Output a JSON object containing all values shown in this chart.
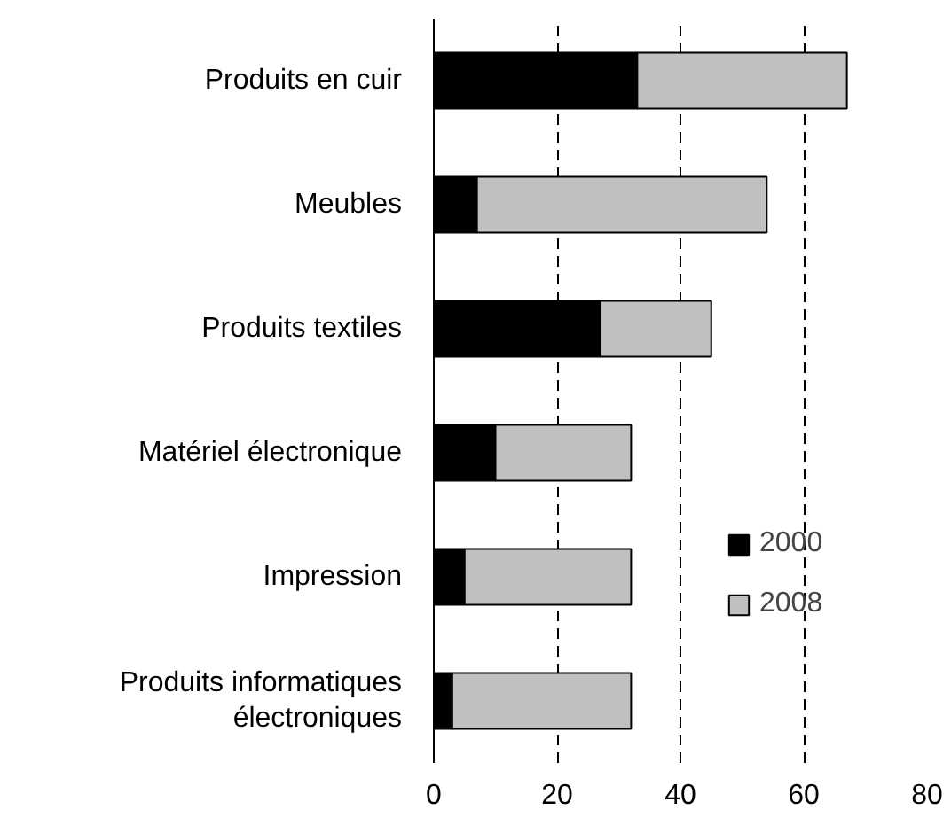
{
  "chart_data": {
    "type": "bar",
    "orientation": "horizontal",
    "stacked": true,
    "categories": [
      "Produits en cuir",
      "Meubles",
      "Produits textiles",
      "Matériel électronique",
      "Impression",
      "Produits informatiques électroniques"
    ],
    "series": [
      {
        "name": "2000",
        "color": "#000000",
        "values": [
          33,
          7,
          27,
          10,
          5,
          3
        ]
      },
      {
        "name": "2008",
        "color": "#c0c0c0",
        "values": [
          34,
          47,
          18,
          22,
          27,
          29
        ]
      }
    ],
    "xlim": [
      0,
      80
    ],
    "xticks": [
      0,
      20,
      40,
      60,
      80
    ],
    "grid": "x",
    "line_style": "dashed",
    "legend": "right"
  }
}
